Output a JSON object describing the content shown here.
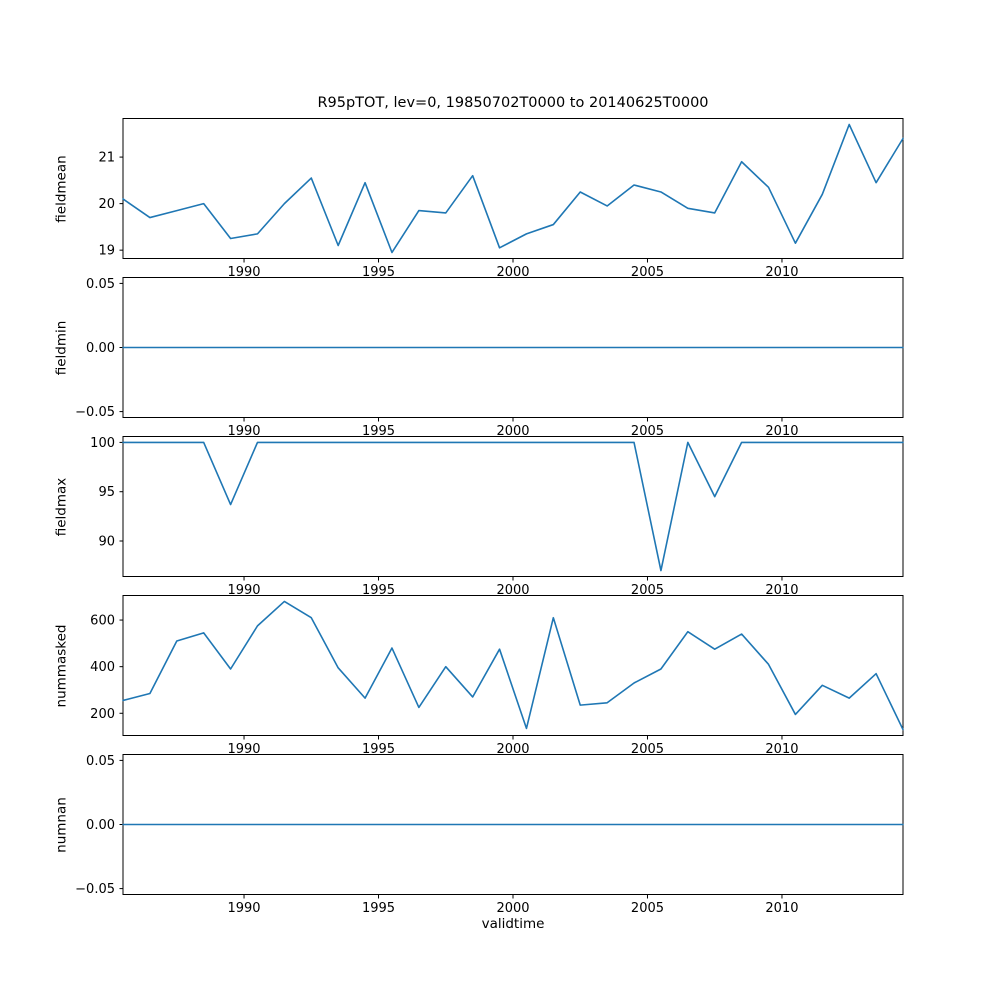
{
  "figure": {
    "title": "R95pTOT, lev=0, 19850702T0000 to 20140625T0000",
    "xlabel": "validtime",
    "line_color": "#1f77b4",
    "background": "#ffffff"
  },
  "chart_data": [
    {
      "type": "line",
      "ylabel": "fieldmean",
      "x": [
        1985.5,
        1986.5,
        1987.5,
        1988.5,
        1989.5,
        1990.5,
        1991.5,
        1992.5,
        1993.5,
        1994.5,
        1995.5,
        1996.5,
        1997.5,
        1998.5,
        1999.5,
        2000.5,
        2001.5,
        2002.5,
        2003.5,
        2004.5,
        2005.5,
        2006.5,
        2007.5,
        2008.5,
        2009.5,
        2010.5,
        2011.5,
        2012.5,
        2013.5,
        2014.5
      ],
      "values": [
        20.1,
        19.7,
        19.85,
        20.0,
        19.25,
        19.35,
        20.0,
        20.55,
        19.1,
        20.45,
        18.95,
        19.85,
        19.8,
        20.6,
        19.05,
        19.35,
        19.55,
        20.25,
        19.95,
        20.4,
        20.25,
        19.9,
        19.8,
        20.9,
        20.35,
        19.15,
        20.2,
        21.7,
        20.45,
        21.4
      ],
      "xlim": [
        1985.5,
        2014.5
      ],
      "ylim": [
        18.81,
        21.84
      ],
      "xticks": [
        1990,
        1995,
        2000,
        2005,
        2010
      ],
      "xtick_labels": [
        "1990",
        "1995",
        "2000",
        "2005",
        "2010"
      ],
      "yticks": [
        21,
        20,
        19
      ],
      "ytick_labels": [
        "21",
        "20",
        "19"
      ],
      "grid": false,
      "legend": "none"
    },
    {
      "type": "line",
      "ylabel": "fieldmin",
      "x": [
        1985.5,
        1986.5,
        1987.5,
        1988.5,
        1989.5,
        1990.5,
        1991.5,
        1992.5,
        1993.5,
        1994.5,
        1995.5,
        1996.5,
        1997.5,
        1998.5,
        1999.5,
        2000.5,
        2001.5,
        2002.5,
        2003.5,
        2004.5,
        2005.5,
        2006.5,
        2007.5,
        2008.5,
        2009.5,
        2010.5,
        2011.5,
        2012.5,
        2013.5,
        2014.5
      ],
      "values": [
        0,
        0,
        0,
        0,
        0,
        0,
        0,
        0,
        0,
        0,
        0,
        0,
        0,
        0,
        0,
        0,
        0,
        0,
        0,
        0,
        0,
        0,
        0,
        0,
        0,
        0,
        0,
        0,
        0,
        0
      ],
      "xlim": [
        1985.5,
        2014.5
      ],
      "ylim": [
        -0.055,
        0.055
      ],
      "xticks": [
        1990,
        1995,
        2000,
        2005,
        2010
      ],
      "xtick_labels": [
        "1990",
        "1995",
        "2000",
        "2005",
        "2010"
      ],
      "yticks": [
        0.05,
        0.0,
        -0.05
      ],
      "ytick_labels": [
        "0.05",
        "0.00",
        "−0.05"
      ],
      "grid": false,
      "legend": "none"
    },
    {
      "type": "line",
      "ylabel": "fieldmax",
      "x": [
        1985.5,
        1986.5,
        1987.5,
        1988.5,
        1989.5,
        1990.5,
        1991.5,
        1992.5,
        1993.5,
        1994.5,
        1995.5,
        1996.5,
        1997.5,
        1998.5,
        1999.5,
        2000.5,
        2001.5,
        2002.5,
        2003.5,
        2004.5,
        2005.5,
        2006.5,
        2007.5,
        2008.5,
        2009.5,
        2010.5,
        2011.5,
        2012.5,
        2013.5,
        2014.5
      ],
      "values": [
        100,
        100,
        100,
        100,
        93.7,
        100,
        100,
        100,
        100,
        100,
        100,
        100,
        100,
        100,
        100,
        100,
        100,
        100,
        100,
        100,
        87.0,
        100,
        94.5,
        100,
        100,
        100,
        100,
        100,
        100,
        100
      ],
      "xlim": [
        1985.5,
        2014.5
      ],
      "ylim": [
        86.35,
        100.65
      ],
      "xticks": [
        1990,
        1995,
        2000,
        2005,
        2010
      ],
      "xtick_labels": [
        "1990",
        "1995",
        "2000",
        "2005",
        "2010"
      ],
      "yticks": [
        100,
        95,
        90
      ],
      "ytick_labels": [
        "100",
        "95",
        "90"
      ],
      "grid": false,
      "legend": "none"
    },
    {
      "type": "line",
      "ylabel": "nummasked",
      "x": [
        1985.5,
        1986.5,
        1987.5,
        1988.5,
        1989.5,
        1990.5,
        1991.5,
        1992.5,
        1993.5,
        1994.5,
        1995.5,
        1996.5,
        1997.5,
        1998.5,
        1999.5,
        2000.5,
        2001.5,
        2002.5,
        2003.5,
        2004.5,
        2005.5,
        2006.5,
        2007.5,
        2008.5,
        2009.5,
        2010.5,
        2011.5,
        2012.5,
        2013.5,
        2014.5
      ],
      "values": [
        255,
        285,
        510,
        545,
        390,
        575,
        680,
        610,
        395,
        265,
        480,
        225,
        400,
        270,
        475,
        135,
        610,
        235,
        245,
        330,
        390,
        550,
        475,
        540,
        410,
        195,
        320,
        265,
        370,
        130
      ],
      "xlim": [
        1985.5,
        2014.5
      ],
      "ylim": [
        102.5,
        707.5
      ],
      "xticks": [
        1990,
        1995,
        2000,
        2005,
        2010
      ],
      "xtick_labels": [
        "1990",
        "1995",
        "2000",
        "2005",
        "2010"
      ],
      "yticks": [
        600,
        400,
        200
      ],
      "ytick_labels": [
        "600",
        "400",
        "200"
      ],
      "grid": false,
      "legend": "none"
    },
    {
      "type": "line",
      "ylabel": "numnan",
      "x": [
        1985.5,
        1986.5,
        1987.5,
        1988.5,
        1989.5,
        1990.5,
        1991.5,
        1992.5,
        1993.5,
        1994.5,
        1995.5,
        1996.5,
        1997.5,
        1998.5,
        1999.5,
        2000.5,
        2001.5,
        2002.5,
        2003.5,
        2004.5,
        2005.5,
        2006.5,
        2007.5,
        2008.5,
        2009.5,
        2010.5,
        2011.5,
        2012.5,
        2013.5,
        2014.5
      ],
      "values": [
        0,
        0,
        0,
        0,
        0,
        0,
        0,
        0,
        0,
        0,
        0,
        0,
        0,
        0,
        0,
        0,
        0,
        0,
        0,
        0,
        0,
        0,
        0,
        0,
        0,
        0,
        0,
        0,
        0,
        0
      ],
      "xlim": [
        1985.5,
        2014.5
      ],
      "ylim": [
        -0.055,
        0.055
      ],
      "xticks": [
        1990,
        1995,
        2000,
        2005,
        2010
      ],
      "xtick_labels": [
        "1990",
        "1995",
        "2000",
        "2005",
        "2010"
      ],
      "yticks": [
        0.05,
        0.0,
        -0.05
      ],
      "ytick_labels": [
        "0.05",
        "0.00",
        "−0.05"
      ],
      "grid": false,
      "legend": "none"
    }
  ]
}
